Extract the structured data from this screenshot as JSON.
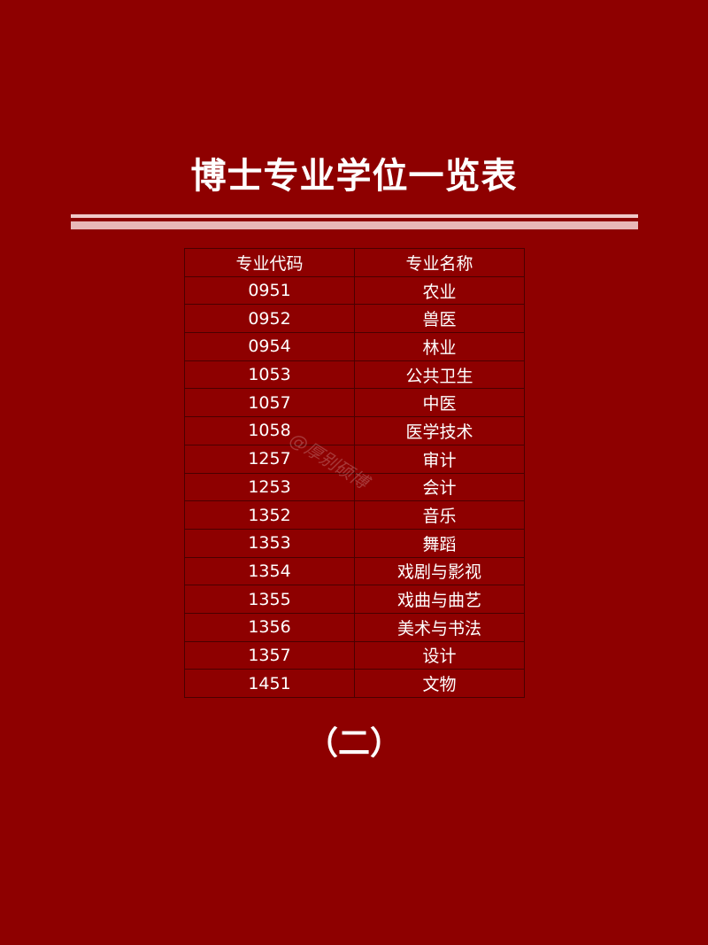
{
  "title": "博士专业学位一览表",
  "table": {
    "headers": [
      "专业代码",
      "专业名称"
    ],
    "rows": [
      [
        "0951",
        "农业"
      ],
      [
        "0952",
        "兽医"
      ],
      [
        "0954",
        "林业"
      ],
      [
        "1053",
        "公共卫生"
      ],
      [
        "1057",
        "中医"
      ],
      [
        "1058",
        "医学技术"
      ],
      [
        "1257",
        "审计"
      ],
      [
        "1253",
        "会计"
      ],
      [
        "1352",
        "音乐"
      ],
      [
        "1353",
        "舞蹈"
      ],
      [
        "1354",
        "戏剧与影视"
      ],
      [
        "1355",
        "戏曲与曲艺"
      ],
      [
        "1356",
        "美术与书法"
      ],
      [
        "1357",
        "设计"
      ],
      [
        "1451",
        "文物"
      ]
    ]
  },
  "watermark": "@厚别硕博",
  "footer": "（二）",
  "colors": {
    "background": "#8e0000",
    "text": "#ffffff",
    "divider": "#f0c8c8"
  }
}
